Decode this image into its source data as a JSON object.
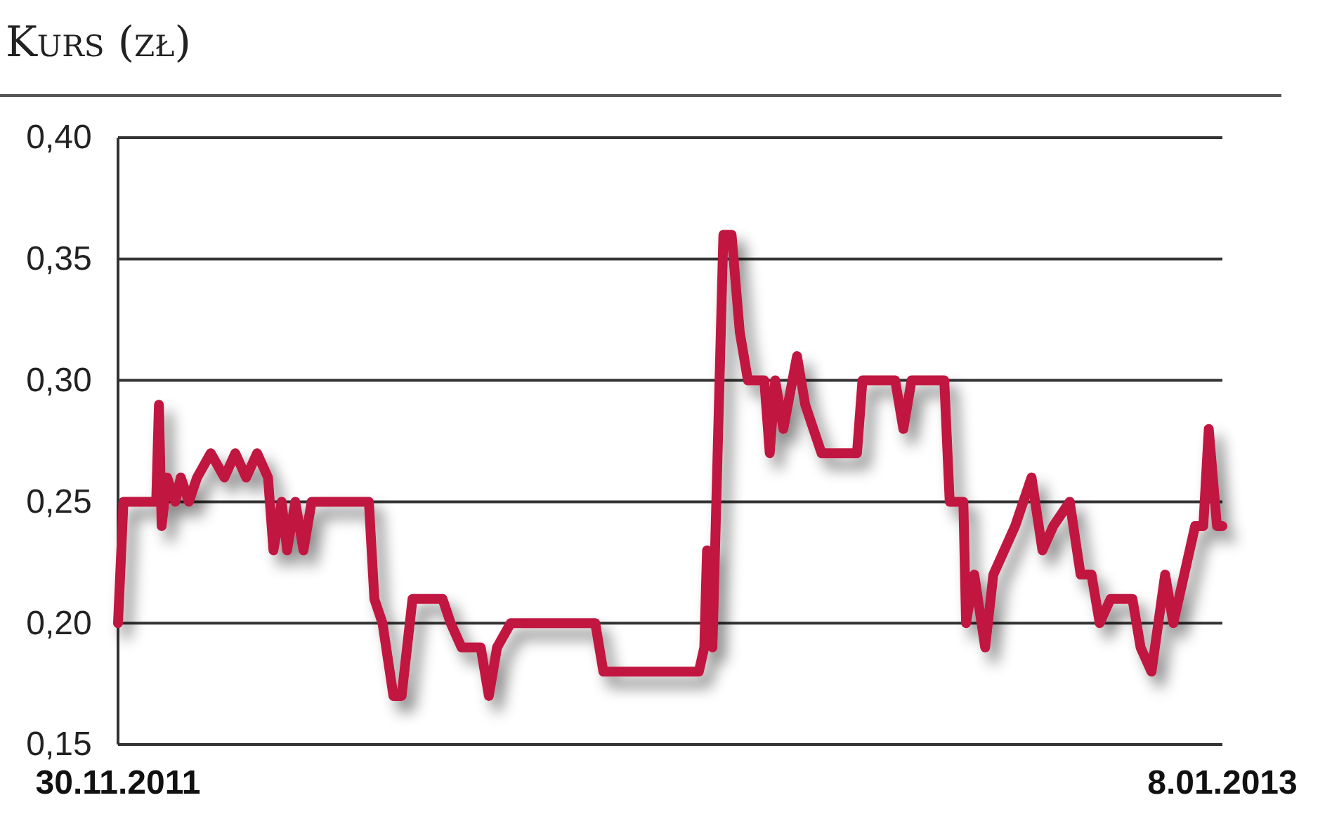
{
  "chart_data": {
    "type": "line",
    "subtitle": "Kurs (zł)",
    "x": [
      "2011-11-30",
      "2011-12-02",
      "2011-12-14",
      "2011-12-15",
      "2011-12-16",
      "2011-12-18",
      "2011-12-21",
      "2011-12-23",
      "2011-12-26",
      "2011-12-29",
      "2012-01-03",
      "2012-01-08",
      "2012-01-12",
      "2012-01-16",
      "2012-01-20",
      "2012-01-24",
      "2012-01-26",
      "2012-01-29",
      "2012-01-31",
      "2012-02-03",
      "2012-02-06",
      "2012-02-09",
      "2012-03-01",
      "2012-03-03",
      "2012-03-06",
      "2012-03-10",
      "2012-03-13",
      "2012-03-17",
      "2012-03-28",
      "2012-03-31",
      "2012-04-04",
      "2012-04-11",
      "2012-04-14",
      "2012-04-17",
      "2012-04-22",
      "2012-05-23",
      "2012-05-26",
      "2012-06-30",
      "2012-07-02",
      "2012-07-03",
      "2012-07-05",
      "2012-07-09",
      "2012-07-12",
      "2012-07-15",
      "2012-07-18",
      "2012-07-24",
      "2012-07-26",
      "2012-07-28",
      "2012-07-31",
      "2012-08-05",
      "2012-08-08",
      "2012-08-11",
      "2012-08-14",
      "2012-08-27",
      "2012-08-29",
      "2012-09-10",
      "2012-09-13",
      "2012-09-16",
      "2012-09-28",
      "2012-09-30",
      "2012-10-05",
      "2012-10-06",
      "2012-10-09",
      "2012-10-13",
      "2012-10-16",
      "2012-10-20",
      "2012-10-24",
      "2012-10-30",
      "2012-11-03",
      "2012-11-07",
      "2012-11-13",
      "2012-11-17",
      "2012-11-21",
      "2012-11-24",
      "2012-11-28",
      "2012-12-06",
      "2012-12-09",
      "2012-12-13",
      "2012-12-18",
      "2012-12-21",
      "2012-12-25",
      "2012-12-29",
      "2013-01-01",
      "2013-01-03",
      "2013-01-06",
      "2013-01-08"
    ],
    "series": [
      {
        "color": "#c0173f",
        "values": [
          0.2,
          0.25,
          0.25,
          0.29,
          0.24,
          0.26,
          0.25,
          0.26,
          0.25,
          0.26,
          0.27,
          0.26,
          0.27,
          0.26,
          0.27,
          0.26,
          0.23,
          0.25,
          0.23,
          0.25,
          0.23,
          0.25,
          0.25,
          0.21,
          0.2,
          0.17,
          0.17,
          0.21,
          0.21,
          0.2,
          0.19,
          0.19,
          0.17,
          0.19,
          0.2,
          0.2,
          0.18,
          0.18,
          0.19,
          0.23,
          0.19,
          0.36,
          0.36,
          0.32,
          0.3,
          0.3,
          0.27,
          0.3,
          0.28,
          0.31,
          0.29,
          0.28,
          0.27,
          0.27,
          0.3,
          0.3,
          0.28,
          0.3,
          0.3,
          0.25,
          0.25,
          0.2,
          0.22,
          0.19,
          0.22,
          0.23,
          0.24,
          0.26,
          0.23,
          0.24,
          0.25,
          0.22,
          0.22,
          0.2,
          0.21,
          0.21,
          0.19,
          0.18,
          0.22,
          0.2,
          0.22,
          0.24,
          0.24,
          0.28,
          0.24,
          0.24
        ]
      }
    ],
    "xlim": [
      "2011-11-30",
      "2013-01-08"
    ],
    "xticks": [
      {
        "value": "2011-11-30",
        "label": "30.11.2011"
      },
      {
        "value": "2013-01-08",
        "label": "8.01.2013"
      }
    ],
    "ylim": [
      0.15,
      0.4
    ],
    "yticks": [
      {
        "value": 0.15,
        "label": "0,15"
      },
      {
        "value": 0.2,
        "label": "0,20"
      },
      {
        "value": 0.25,
        "label": "0,25"
      },
      {
        "value": 0.3,
        "label": "0,30"
      },
      {
        "value": 0.35,
        "label": "0,35"
      },
      {
        "value": 0.4,
        "label": "0,40"
      }
    ],
    "grid": "y",
    "marker": "none",
    "line_style": "solid"
  }
}
